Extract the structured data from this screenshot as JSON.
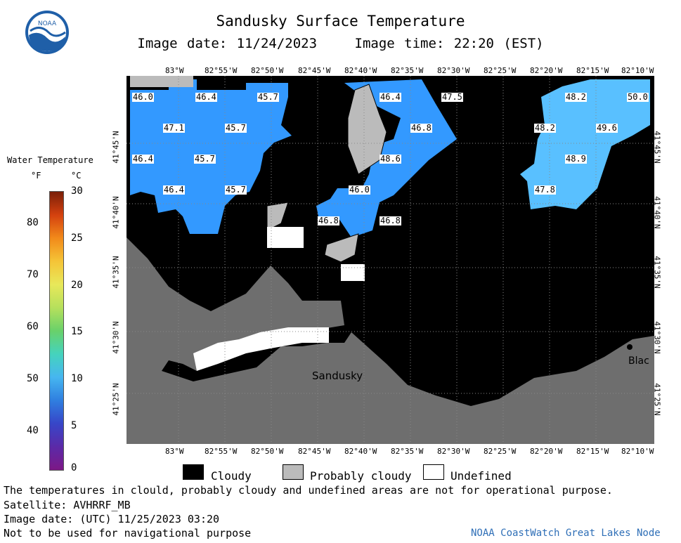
{
  "header": {
    "title": "Sandusky Surface Temperature",
    "image_date": "Image date: 11/24/2023",
    "image_time": "Image time: 22:20 (EST)"
  },
  "legend": {
    "title": "Water Temperature",
    "unit_f": "°F",
    "unit_c": "°C",
    "f_ticks": [
      "80",
      "70",
      "60",
      "50",
      "40"
    ],
    "c_ticks": [
      "30",
      "25",
      "20",
      "15",
      "10",
      "5",
      "0"
    ]
  },
  "map": {
    "lon_labels": [
      "83°W",
      "82°55'W",
      "82°50'W",
      "82°45'W",
      "82°40'W",
      "82°35'W",
      "82°30'W",
      "82°25'W",
      "82°20'W",
      "82°15'W",
      "82°10'W"
    ],
    "lat_labels": [
      "41°45'N",
      "41°40'N",
      "41°35'N",
      "41°30'N",
      "41°25'N"
    ],
    "places": {
      "sandusky": "Sandusky",
      "black": "Blac"
    },
    "temps": [
      "46.0",
      "46.4",
      "45.7",
      "47.1",
      "45.7",
      "46.4",
      "45.7",
      "46.4",
      "45.7",
      "46.4",
      "47.5",
      "46.8",
      "48.6",
      "46.0",
      "46.8",
      "46.8",
      "48.2",
      "50.0",
      "48.2",
      "49.6",
      "48.9",
      "47.8"
    ]
  },
  "key": {
    "cloudy": "Cloudy",
    "probably_cloudy": "Probably cloudy",
    "undefined": "Undefined"
  },
  "footer": {
    "disclaimer": "The temperatures in clould, probably cloudy and undefined areas are not for operational purpose.",
    "satellite": "Satellite: AVHRRF_MB",
    "utc_date": "Image date: (UTC) 11/25/2023  03:20",
    "nav_warning": "Not to be used for navigational purpose",
    "node": "NOAA CoastWatch Great Lakes Node"
  },
  "colors": {
    "water": "#3399ff",
    "water_light": "#66ccff",
    "cloud": "#000000",
    "probably_cloud": "#bbbbbb",
    "land": "#6e6e6e",
    "undefined": "#ffffff"
  }
}
